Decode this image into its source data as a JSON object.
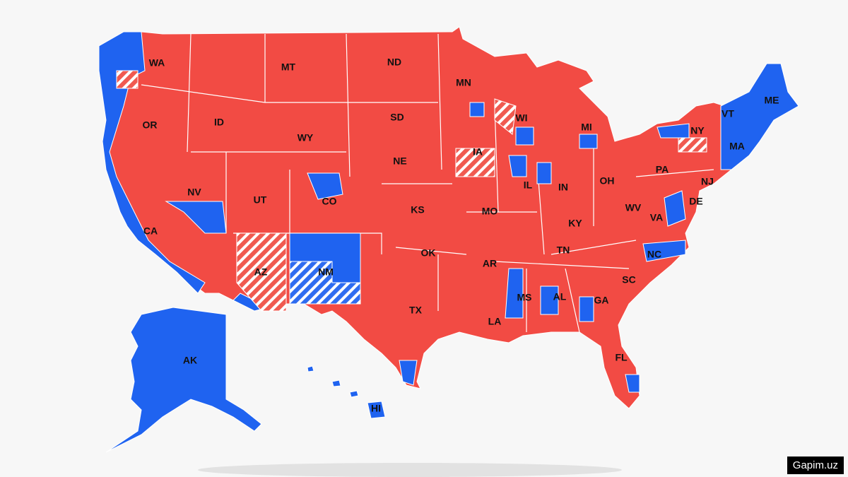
{
  "map": {
    "labels": [
      "WA",
      "OR",
      "ID",
      "MT",
      "WY",
      "ND",
      "SD",
      "NE",
      "MN",
      "WI",
      "IA",
      "MI",
      "NY",
      "VT",
      "ME",
      "MA",
      "CA",
      "NV",
      "UT",
      "CO",
      "AZ",
      "NM",
      "KS",
      "OK",
      "TX",
      "MO",
      "AR",
      "LA",
      "IL",
      "IN",
      "OH",
      "KY",
      "TN",
      "MS",
      "AL",
      "GA",
      "SC",
      "NC",
      "VA",
      "WV",
      "PA",
      "NJ",
      "DE",
      "FL",
      "AK",
      "HI"
    ]
  },
  "watermark": "Gapim.uz"
}
